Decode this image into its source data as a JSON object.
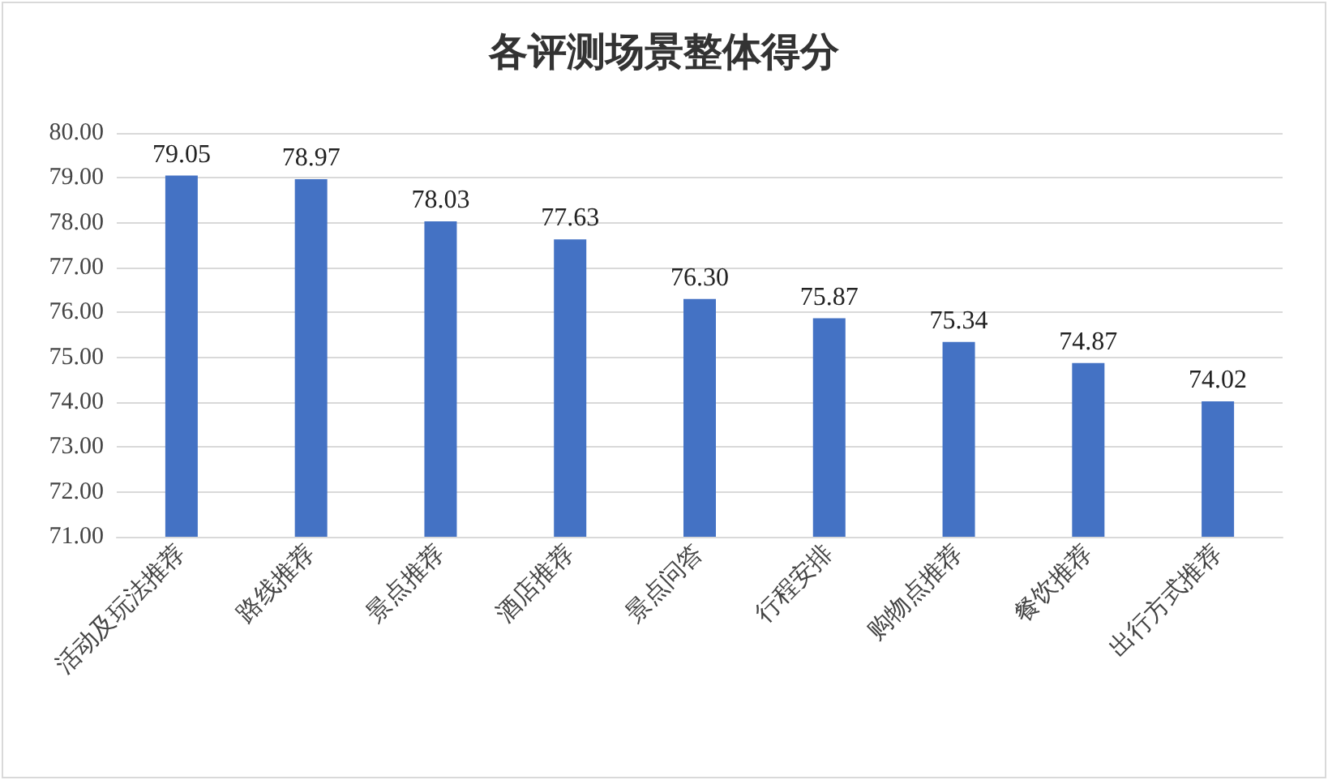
{
  "chart_data": {
    "type": "bar",
    "title": "各评测场景整体得分",
    "categories": [
      "活动及玩法推荐",
      "路线推荐",
      "景点推荐",
      "酒店推荐",
      "景点问答",
      "行程安排",
      "购物点推荐",
      "餐饮推荐",
      "出行方式推荐"
    ],
    "values": [
      79.05,
      78.97,
      78.03,
      77.63,
      76.3,
      75.87,
      75.34,
      74.87,
      74.02
    ],
    "value_labels": [
      "79.05",
      "78.97",
      "78.03",
      "77.63",
      "76.30",
      "75.87",
      "75.34",
      "74.87",
      "74.02"
    ],
    "color": "#4472c4",
    "ylim": [
      71,
      80
    ],
    "yticks": [
      {
        "value": 71,
        "label": "71.00"
      },
      {
        "value": 72,
        "label": "72.00"
      },
      {
        "value": 73,
        "label": "73.00"
      },
      {
        "value": 74,
        "label": "74.00"
      },
      {
        "value": 75,
        "label": "75.00"
      },
      {
        "value": 76,
        "label": "76.00"
      },
      {
        "value": 77,
        "label": "77.00"
      },
      {
        "value": 78,
        "label": "78.00"
      },
      {
        "value": 79,
        "label": "79.00"
      },
      {
        "value": 80,
        "label": "80.00"
      }
    ],
    "grid": "y"
  }
}
